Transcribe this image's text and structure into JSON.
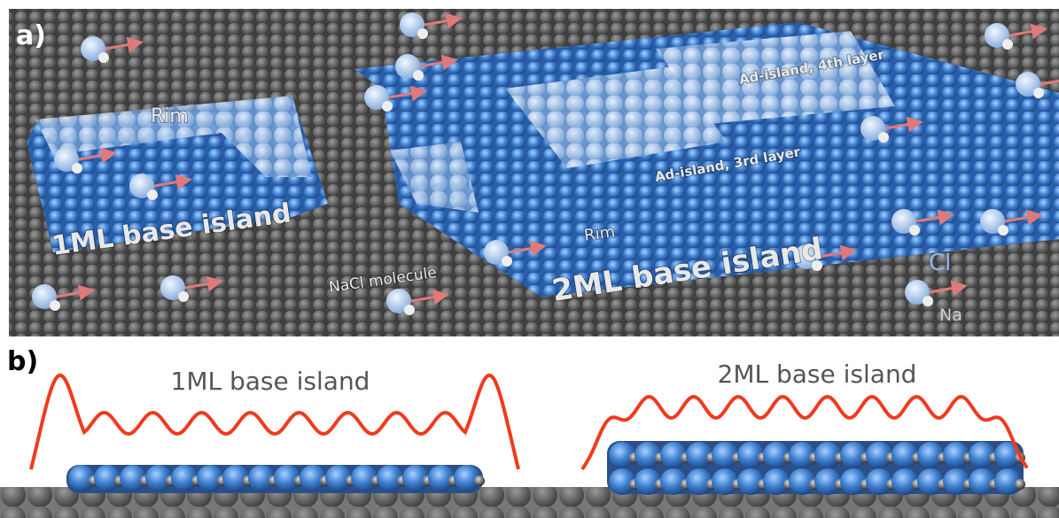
{
  "panel_a": {
    "letter": "a)",
    "labels": {
      "rim_1ml": "Rim",
      "base_1ml": "1ML base island",
      "nacl": "NaCl molecule",
      "rim_2ml": "Rim",
      "base_2ml": "2ML base island",
      "ad3": "Ad-island, 3rd layer",
      "ad4": "Ad-island, 4th layer",
      "cl": "Cl",
      "na": "Na"
    }
  },
  "panel_b": {
    "letter": "b)",
    "left_label": "1ML base island",
    "right_label": "2ML base island"
  }
}
